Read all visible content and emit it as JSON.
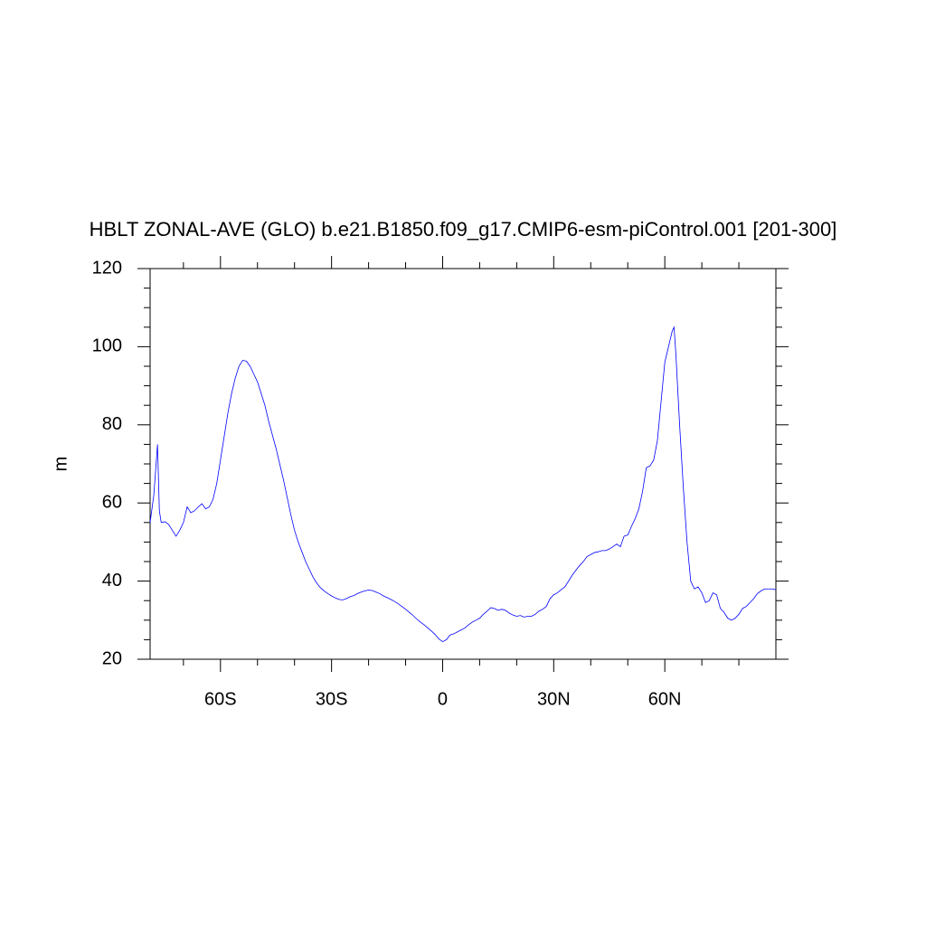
{
  "chart_data": {
    "type": "line",
    "title": "HBLT ZONAL-AVE (GLO) b.e21.B1850.f09_g17.CMIP6-esm-piControl.001 [201-300]",
    "y_label": "m",
    "x": [
      -79,
      -78,
      -77,
      -76.5,
      -76,
      -75,
      -74,
      -73,
      -72,
      -71,
      -70,
      -69,
      -68,
      -67,
      -66,
      -65,
      -64,
      -63,
      -62,
      -61,
      -60,
      -59,
      -58,
      -57,
      -56,
      -55,
      -54,
      -53,
      -52,
      -51,
      -50,
      -49,
      -48,
      -47,
      -46,
      -45,
      -44,
      -43,
      -42,
      -41,
      -40,
      -39,
      -38,
      -37,
      -36,
      -35,
      -34,
      -33,
      -32,
      -31,
      -30,
      -29,
      -28,
      -27,
      -26,
      -25,
      -24,
      -23,
      -22,
      -21,
      -20,
      -19,
      -18,
      -17,
      -16,
      -15,
      -14,
      -13,
      -12,
      -11,
      -10,
      -9,
      -8,
      -7,
      -6,
      -5,
      -4,
      -3,
      -2,
      -1,
      0,
      1,
      2,
      3,
      4,
      5,
      6,
      7,
      8,
      9,
      10,
      11,
      12,
      13,
      14,
      15,
      16,
      17,
      18,
      19,
      20,
      21,
      22,
      23,
      24,
      25,
      26,
      27,
      28,
      29,
      30,
      31,
      32,
      33,
      34,
      35,
      36,
      37,
      38,
      39,
      40,
      41,
      42,
      43,
      44,
      45,
      46,
      47,
      48,
      49,
      50,
      51,
      52,
      53,
      54,
      55,
      56,
      57,
      58,
      59,
      60,
      61,
      62,
      62.5,
      63,
      64,
      65,
      66,
      67,
      68,
      69,
      70,
      71,
      72,
      73,
      74,
      75,
      76,
      77,
      78,
      79,
      80,
      81,
      82,
      83,
      84,
      85,
      86,
      87,
      88,
      89,
      90
    ],
    "series": [
      {
        "color": "#0000ff",
        "values": [
          55,
          62,
          75,
          58,
          55,
          55.2,
          54.5,
          53,
          51.5,
          53,
          55,
          59,
          57.5,
          58,
          59,
          59.8,
          58.5,
          59,
          61,
          65,
          71,
          77,
          83,
          88,
          92,
          95,
          96.5,
          96.3,
          95,
          93,
          91,
          88,
          85,
          81,
          77.5,
          74,
          70,
          66,
          61.5,
          57,
          53,
          50,
          47.5,
          45,
          43,
          41,
          39.5,
          38.3,
          37.5,
          36.8,
          36.2,
          35.7,
          35.3,
          35.2,
          35.5,
          36,
          36.3,
          36.8,
          37.2,
          37.5,
          37.7,
          37.6,
          37.2,
          36.8,
          36.2,
          35.8,
          35.3,
          34.8,
          34.2,
          33.5,
          32.8,
          32,
          31.2,
          30.3,
          29.5,
          28.8,
          28,
          27.2,
          26.3,
          25.2,
          24.5,
          25,
          26.2,
          26.5,
          27,
          27.5,
          28,
          28.8,
          29.5,
          30,
          30.5,
          31.5,
          32.3,
          33.2,
          33,
          32.5,
          32.8,
          32.5,
          31.8,
          31.3,
          31,
          31.2,
          30.8,
          31,
          31,
          31.5,
          32.3,
          32.8,
          33.5,
          35.5,
          36.5,
          37,
          37.8,
          38.5,
          40,
          41.5,
          42.8,
          44,
          45,
          46.3,
          46.8,
          47.3,
          47.5,
          47.8,
          47.8,
          48.2,
          48.8,
          49.5,
          48.8,
          51.5,
          51.8,
          54,
          56,
          58.5,
          63,
          69,
          69.5,
          71,
          76,
          86,
          96,
          100,
          104,
          105,
          98,
          80,
          64,
          50,
          40,
          38,
          38.5,
          37,
          34.5,
          35,
          37,
          36.5,
          33,
          32,
          30.5,
          30,
          30.5,
          31.5,
          33,
          33.5,
          34.5,
          35.5,
          36.8,
          37.5,
          38,
          38,
          38,
          37.8
        ]
      }
    ],
    "xlim": [
      -79,
      90
    ],
    "xticks": [
      {
        "value": -60,
        "label": "60S"
      },
      {
        "value": -30,
        "label": "30S"
      },
      0,
      {
        "value": 30,
        "label": "30N"
      },
      {
        "value": 60,
        "label": "60N"
      }
    ],
    "xminorticks": [
      -70,
      -50,
      -40,
      -20,
      -10,
      10,
      20,
      40,
      50,
      70,
      80
    ],
    "ylim": [
      20,
      120
    ],
    "yticks": [
      20,
      40,
      60,
      80,
      100,
      120
    ],
    "yminorticks": [
      25,
      30,
      35,
      45,
      50,
      55,
      65,
      70,
      75,
      85,
      90,
      95,
      105,
      110,
      115
    ]
  }
}
